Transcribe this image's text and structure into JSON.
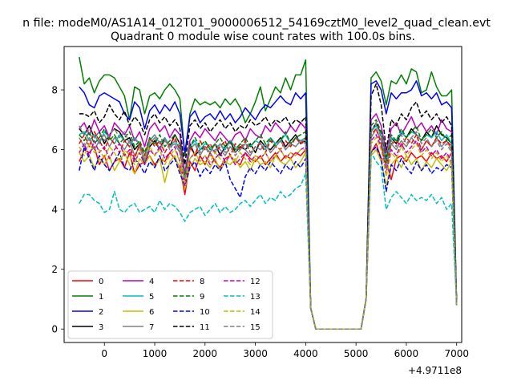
{
  "chart_data": {
    "type": "line",
    "suptitle": "n file: modeM0/AS1A14_012T01_9000006512_54169cztM0_level2_quad_clean.evt",
    "title": "Quadrant 0 module wise count rates with 100.0s bins.",
    "xlabel": "",
    "ylabel": "",
    "x_offset_label": "+4.9711e8",
    "xlim": [
      -800,
      7100
    ],
    "ylim": [
      -0.45,
      9.45
    ],
    "xticks": [
      0,
      1000,
      2000,
      3000,
      4000,
      5000,
      6000,
      7000
    ],
    "xtick_labels": [
      "0",
      "1000",
      "2000",
      "3000",
      "4000",
      "5000",
      "6000",
      "7000"
    ],
    "yticks": [
      0,
      2,
      4,
      6,
      8
    ],
    "ytick_labels": [
      "0",
      "2",
      "4",
      "6",
      "8"
    ],
    "grid": false,
    "legend_placement": "lower-left",
    "legend_columns": 4,
    "x_start": -500,
    "x_step": 100,
    "gap_start_index": 46,
    "gap_end_index": 56,
    "series": [
      {
        "name": "0",
        "color": "#ff0000",
        "dash": false,
        "base": [
          5.6,
          6.0,
          5.9,
          6.1,
          5.5,
          5.8,
          5.3,
          5.6,
          5.7,
          5.4,
          5.9,
          5.2,
          5.5,
          5.6,
          5.8,
          5.5,
          5.7,
          5.6,
          5.9,
          5.7,
          5.4,
          4.5,
          5.6,
          5.3,
          5.8,
          5.5,
          5.9,
          5.6,
          5.4,
          5.7,
          5.8,
          5.6,
          5.5,
          5.9,
          5.7,
          5.6,
          5.8,
          5.5,
          5.7,
          5.9,
          5.6,
          5.8,
          5.7,
          5.9,
          5.8,
          6.0
        ],
        "tail": [
          5.9,
          6.2,
          5.7,
          5.6,
          5.0,
          5.7,
          5.8,
          5.6,
          5.9,
          5.7,
          5.8,
          5.6,
          5.9,
          5.7,
          5.8,
          5.6,
          5.9
        ]
      },
      {
        "name": "1",
        "color": "#008000",
        "dash": false,
        "base": [
          9.1,
          8.2,
          8.4,
          7.9,
          8.3,
          8.5,
          8.5,
          8.4,
          8.1,
          7.8,
          7.0,
          8.1,
          8.0,
          7.2,
          7.8,
          7.9,
          7.7,
          8.0,
          8.2,
          8.0,
          7.7,
          5.8,
          7.2,
          7.7,
          7.5,
          7.6,
          7.5,
          7.6,
          7.4,
          7.7,
          7.5,
          7.7,
          7.4,
          6.9,
          7.2,
          7.6,
          8.1,
          7.3,
          7.7,
          8.1,
          7.9,
          8.4,
          8.0,
          8.5,
          8.5,
          9.0
        ],
        "tail": [
          8.4,
          8.6,
          8.3,
          7.5,
          8.3,
          8.2,
          8.5,
          8.2,
          8.7,
          8.6,
          7.9,
          8.0,
          8.6,
          8.1,
          7.8,
          7.8,
          8.0
        ]
      },
      {
        "name": "2",
        "color": "#0000ff",
        "dash": false,
        "base": [
          8.1,
          7.9,
          7.5,
          7.4,
          7.8,
          7.9,
          7.8,
          7.7,
          7.6,
          7.2,
          7.0,
          7.6,
          7.4,
          6.7,
          7.3,
          7.5,
          7.2,
          7.5,
          7.3,
          7.6,
          7.2,
          5.9,
          7.1,
          7.3,
          6.9,
          7.1,
          7.2,
          7.0,
          7.3,
          7.0,
          7.2,
          6.9,
          7.1,
          7.4,
          7.2,
          7.0,
          7.3,
          7.5,
          7.4,
          7.6,
          7.8,
          7.6,
          7.5,
          7.9,
          7.7,
          7.9
        ],
        "tail": [
          8.2,
          8.3,
          8.0,
          7.2,
          7.9,
          7.7,
          7.9,
          7.9,
          8.0,
          8.3,
          7.8,
          7.9,
          7.7,
          7.9,
          7.5,
          7.6,
          7.4
        ]
      },
      {
        "name": "3",
        "color": "#000000",
        "dash": false,
        "base": [
          6.7,
          6.5,
          6.8,
          6.4,
          6.6,
          6.2,
          6.5,
          6.7,
          6.6,
          6.3,
          6.4,
          6.0,
          6.2,
          5.5,
          6.1,
          6.3,
          6.0,
          6.4,
          6.1,
          6.5,
          6.2,
          5.0,
          6.2,
          5.8,
          6.0,
          6.1,
          5.9,
          6.2,
          5.8,
          6.1,
          6.3,
          5.9,
          6.1,
          6.0,
          6.2,
          5.9,
          6.3,
          6.1,
          6.0,
          6.2,
          6.4,
          6.1,
          6.3,
          6.5,
          6.2,
          6.3
        ],
        "tail": [
          6.6,
          6.9,
          6.5,
          5.7,
          6.4,
          6.2,
          6.6,
          6.4,
          6.7,
          6.5,
          6.3,
          6.6,
          6.4,
          6.8,
          6.5,
          6.4,
          6.2
        ]
      },
      {
        "name": "4",
        "color": "#bf00bf",
        "dash": false,
        "base": [
          6.7,
          6.9,
          6.5,
          7.0,
          6.6,
          6.8,
          6.4,
          6.9,
          6.7,
          6.5,
          6.8,
          6.3,
          6.6,
          6.1,
          6.7,
          6.9,
          6.6,
          6.8,
          6.4,
          6.7,
          6.5,
          5.2,
          6.3,
          6.6,
          6.4,
          6.7,
          6.5,
          6.3,
          6.6,
          6.4,
          6.2,
          6.5,
          6.6,
          6.3,
          6.7,
          6.5,
          6.4,
          6.8,
          6.6,
          6.9,
          6.7,
          6.5,
          6.8,
          6.6,
          6.9,
          6.7
        ],
        "tail": [
          7.0,
          7.2,
          6.8,
          5.9,
          6.7,
          6.9,
          6.5,
          6.8,
          7.1,
          6.7,
          6.9,
          6.6,
          6.8,
          6.5,
          7.0,
          6.7,
          6.6
        ]
      },
      {
        "name": "5",
        "color": "#00bfbf",
        "dash": false,
        "base": [
          6.5,
          6.6,
          6.3,
          6.5,
          6.2,
          6.6,
          6.4,
          6.2,
          6.5,
          6.3,
          6.1,
          6.4,
          6.2,
          5.8,
          6.3,
          6.5,
          6.2,
          6.4,
          6.1,
          6.3,
          6.0,
          5.0,
          6.1,
          6.3,
          6.0,
          6.2,
          6.1,
          5.9,
          6.2,
          6.0,
          6.3,
          6.1,
          6.0,
          6.2,
          6.1,
          6.3,
          6.2,
          6.0,
          6.4,
          6.2,
          6.3,
          6.5,
          6.2,
          6.4,
          6.3,
          6.4
        ],
        "tail": [
          6.6,
          6.8,
          6.5,
          5.6,
          6.4,
          6.3,
          6.6,
          6.4,
          6.6,
          6.5,
          6.3,
          6.5,
          6.4,
          6.6,
          6.3,
          6.5,
          6.2
        ]
      },
      {
        "name": "6",
        "color": "#bfbf00",
        "dash": false,
        "base": [
          5.9,
          5.6,
          5.8,
          5.4,
          5.7,
          5.5,
          5.8,
          5.3,
          5.6,
          5.9,
          5.5,
          5.2,
          5.7,
          5.5,
          5.8,
          5.4,
          5.7,
          4.9,
          5.6,
          5.8,
          5.3,
          4.7,
          5.4,
          5.7,
          5.5,
          5.6,
          5.4,
          5.7,
          5.3,
          5.6,
          5.5,
          5.7,
          5.4,
          5.6,
          5.3,
          5.7,
          5.5,
          5.6,
          5.4,
          5.8,
          5.6,
          5.5,
          5.7,
          5.4,
          5.6,
          5.9
        ],
        "tail": [
          5.8,
          6.0,
          5.6,
          4.8,
          5.5,
          5.7,
          5.4,
          5.8,
          5.5,
          5.7,
          5.3,
          5.6,
          5.4,
          5.7,
          5.5,
          5.3,
          5.6
        ]
      },
      {
        "name": "7",
        "color": "#808080",
        "dash": false,
        "base": [
          6.4,
          6.1,
          6.4,
          6.0,
          6.3,
          6.5,
          6.1,
          6.4,
          6.2,
          6.0,
          6.3,
          5.8,
          6.1,
          5.6,
          6.2,
          6.4,
          6.0,
          6.3,
          6.1,
          6.2,
          5.9,
          5.1,
          6.0,
          6.2,
          5.8,
          6.1,
          5.9,
          6.2,
          6.0,
          5.8,
          6.1,
          5.9,
          6.2,
          6.0,
          5.8,
          6.1,
          6.0,
          6.2,
          5.9,
          6.1,
          6.3,
          6.0,
          6.2,
          6.1,
          6.3,
          6.2
        ],
        "tail": [
          6.4,
          6.7,
          6.3,
          5.4,
          6.2,
          6.0,
          6.3,
          6.1,
          6.4,
          6.2,
          6.0,
          6.3,
          6.1,
          6.4,
          6.1,
          6.3,
          6.0
        ]
      },
      {
        "name": "8",
        "color": "#ff0000",
        "dash": true,
        "base": [
          6.2,
          6.5,
          6.1,
          6.6,
          6.3,
          6.0,
          6.4,
          6.2,
          5.9,
          6.3,
          6.1,
          5.7,
          6.2,
          5.8,
          6.4,
          6.1,
          6.3,
          5.9,
          6.2,
          6.4,
          6.0,
          4.9,
          6.1,
          5.8,
          6.3,
          6.0,
          6.2,
          5.9,
          6.1,
          6.3,
          5.8,
          6.2,
          6.0,
          6.3,
          5.9,
          6.1,
          6.2,
          5.9,
          6.3,
          6.1,
          6.0,
          6.3,
          6.1,
          6.4,
          6.2,
          6.4
        ],
        "tail": [
          6.5,
          6.7,
          6.2,
          5.4,
          6.2,
          6.3,
          6.1,
          6.4,
          6.2,
          6.5,
          6.0,
          6.3,
          6.1,
          6.4,
          6.2,
          6.3,
          6.1
        ]
      },
      {
        "name": "9",
        "color": "#008000",
        "dash": true,
        "base": [
          6.5,
          6.3,
          6.6,
          6.2,
          6.4,
          6.7,
          6.3,
          6.5,
          6.2,
          6.4,
          6.6,
          6.1,
          6.3,
          5.9,
          6.4,
          6.2,
          6.5,
          6.1,
          6.3,
          6.5,
          6.2,
          5.1,
          6.1,
          6.4,
          6.1,
          6.3,
          6.0,
          6.2,
          6.4,
          6.1,
          6.3,
          6.0,
          6.2,
          6.4,
          6.1,
          6.3,
          6.5,
          6.2,
          6.4,
          6.1,
          6.3,
          6.6,
          6.2,
          6.4,
          6.5,
          6.6
        ],
        "tail": [
          6.8,
          7.0,
          6.6,
          5.6,
          6.5,
          6.3,
          6.7,
          6.4,
          6.6,
          6.8,
          6.3,
          6.5,
          6.7,
          6.4,
          6.6,
          6.3,
          6.5
        ]
      },
      {
        "name": "10",
        "color": "#0000ff",
        "dash": true,
        "base": [
          5.3,
          6.1,
          5.7,
          5.3,
          5.8,
          5.5,
          5.3,
          5.6,
          5.9,
          5.4,
          5.3,
          5.7,
          5.5,
          5.2,
          5.6,
          5.4,
          5.8,
          5.3,
          5.5,
          5.7,
          5.2,
          4.8,
          5.4,
          5.6,
          5.1,
          5.4,
          5.2,
          5.5,
          5.3,
          5.6,
          5.0,
          4.7,
          4.4,
          5.1,
          5.4,
          5.2,
          5.5,
          5.3,
          5.6,
          5.4,
          5.2,
          5.5,
          5.3,
          5.6,
          5.4,
          5.7
        ],
        "tail": [
          5.9,
          6.1,
          5.7,
          4.6,
          5.5,
          5.3,
          5.7,
          5.4,
          5.2,
          5.6,
          5.3,
          5.5,
          5.2,
          5.4,
          5.3,
          5.5,
          5.4
        ]
      },
      {
        "name": "11",
        "color": "#000000",
        "dash": true,
        "base": [
          7.2,
          7.2,
          7.1,
          7.3,
          6.9,
          7.1,
          7.5,
          7.2,
          7.0,
          7.3,
          6.8,
          7.1,
          6.9,
          6.5,
          7.0,
          7.2,
          6.9,
          7.1,
          6.8,
          7.0,
          6.7,
          5.5,
          6.8,
          7.0,
          6.7,
          6.9,
          6.6,
          6.8,
          7.0,
          6.7,
          6.9,
          6.6,
          6.8,
          6.7,
          7.0,
          6.8,
          6.9,
          7.1,
          6.8,
          7.0,
          6.9,
          7.1,
          6.8,
          7.0,
          6.9,
          7.1
        ],
        "tail": [
          7.8,
          8.2,
          7.5,
          6.0,
          7.0,
          6.8,
          7.2,
          7.0,
          7.4,
          7.6,
          7.1,
          7.3,
          7.0,
          7.2,
          6.9,
          7.1,
          6.8
        ]
      },
      {
        "name": "12",
        "color": "#bf00bf",
        "dash": true,
        "base": [
          5.9,
          6.2,
          5.8,
          6.3,
          5.9,
          6.1,
          5.7,
          6.0,
          6.2,
          5.8,
          6.0,
          5.6,
          5.9,
          5.5,
          6.0,
          5.8,
          6.1,
          5.7,
          5.9,
          6.1,
          5.6,
          4.8,
          5.7,
          5.9,
          5.6,
          5.8,
          5.5,
          5.7,
          5.9,
          5.6,
          5.8,
          5.5,
          5.7,
          5.9,
          5.6,
          5.8,
          5.7,
          5.9,
          5.6,
          5.8,
          6.0,
          5.7,
          5.9,
          5.8,
          6.0,
          6.1
        ],
        "tail": [
          6.3,
          6.5,
          6.1,
          5.2,
          6.0,
          5.8,
          6.2,
          5.9,
          6.1,
          6.3,
          5.9,
          6.1,
          5.8,
          6.0,
          5.7,
          5.9,
          5.6
        ]
      },
      {
        "name": "13",
        "color": "#00bfbf",
        "dash": true,
        "base": [
          4.2,
          4.5,
          4.5,
          4.3,
          4.2,
          3.9,
          4.0,
          4.6,
          4.0,
          3.9,
          4.1,
          4.2,
          3.9,
          4.0,
          4.1,
          3.9,
          4.3,
          4.0,
          4.2,
          4.1,
          3.9,
          3.6,
          3.9,
          4.0,
          4.1,
          3.8,
          4.0,
          4.2,
          3.9,
          4.1,
          3.9,
          4.0,
          4.2,
          4.3,
          4.1,
          4.3,
          4.5,
          4.2,
          4.4,
          4.3,
          4.6,
          4.4,
          4.5,
          4.7,
          4.8,
          5.2
        ],
        "tail": [
          5.9,
          5.6,
          5.4,
          4.0,
          4.4,
          4.6,
          4.4,
          4.2,
          4.5,
          4.3,
          4.4,
          4.3,
          4.5,
          4.2,
          4.4,
          4.0,
          4.2
        ]
      },
      {
        "name": "14",
        "color": "#bfbf00",
        "dash": true,
        "base": [
          6.1,
          5.8,
          6.2,
          5.9,
          6.0,
          5.7,
          6.1,
          5.9,
          5.6,
          6.0,
          5.8,
          5.5,
          6.0,
          5.7,
          6.1,
          5.8,
          6.0,
          5.5,
          5.8,
          6.0,
          5.6,
          4.9,
          5.7,
          5.9,
          5.6,
          5.8,
          5.6,
          5.9,
          5.7,
          5.5,
          5.8,
          5.6,
          5.9,
          5.7,
          5.5,
          5.8,
          5.7,
          5.9,
          5.6,
          5.8,
          6.0,
          5.7,
          5.9,
          5.8,
          6.0,
          6.0
        ],
        "tail": [
          6.2,
          6.4,
          6.0,
          5.1,
          5.9,
          5.7,
          6.1,
          5.8,
          6.0,
          6.2,
          5.8,
          6.0,
          5.7,
          5.9,
          5.6,
          5.8,
          5.5
        ]
      },
      {
        "name": "15",
        "color": "#808080",
        "dash": true,
        "base": [
          6.8,
          6.5,
          6.7,
          6.4,
          6.6,
          6.3,
          6.5,
          6.7,
          6.4,
          6.6,
          6.2,
          6.4,
          6.1,
          5.7,
          6.3,
          6.5,
          6.2,
          6.4,
          6.0,
          6.3,
          6.1,
          5.0,
          6.0,
          6.2,
          5.9,
          6.1,
          5.8,
          6.0,
          6.2,
          5.9,
          6.1,
          5.8,
          6.0,
          6.2,
          5.9,
          6.1,
          6.0,
          6.2,
          5.9,
          6.1,
          6.3,
          6.0,
          6.2,
          6.1,
          6.3,
          6.3
        ],
        "tail": [
          6.6,
          6.9,
          6.4,
          5.4,
          6.3,
          6.1,
          6.5,
          6.2,
          6.4,
          6.6,
          6.2,
          6.4,
          6.1,
          6.3,
          6.0,
          6.2,
          5.9
        ]
      }
    ],
    "gap_values": [
      0.7,
      0.0,
      0.0,
      0.0,
      0.0,
      0.0,
      0.0,
      0.0,
      0.0,
      0.0,
      0.0,
      1.0
    ],
    "end_value": 0.8
  }
}
